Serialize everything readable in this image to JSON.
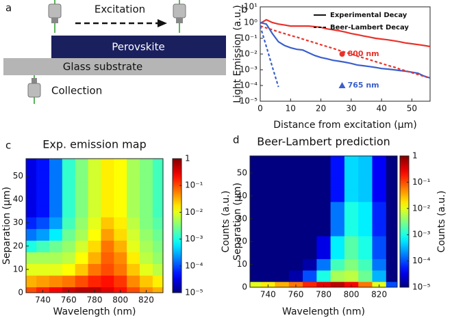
{
  "diagram": {
    "panel": "a",
    "excitation": "Excitation",
    "perovskite": "Perovskite",
    "glass": "Glass substrate",
    "collection": "Collection"
  },
  "chart_data": [
    {
      "type": "line",
      "panel": "b",
      "xlabel": "Distance from excitation (μm)",
      "ylabel": "Light Emission (a.u.)",
      "log_y": true,
      "xlim": [
        0,
        56
      ],
      "ylim": [
        1e-05,
        10
      ],
      "xticks": [
        0,
        10,
        20,
        30,
        40,
        50
      ],
      "yticks": [
        {
          "value": 1e-05,
          "label": "10⁻⁵"
        },
        {
          "value": 0.0001,
          "label": "10⁻⁴"
        },
        {
          "value": 0.001,
          "label": "10⁻³"
        },
        {
          "value": 0.01,
          "label": "10⁻²"
        },
        {
          "value": 0.1,
          "label": "10⁻¹"
        },
        {
          "value": 1,
          "label": "10⁰"
        },
        {
          "value": 10,
          "label": "10¹"
        }
      ],
      "x": [
        0,
        2,
        4,
        6,
        8,
        10,
        12,
        14,
        16,
        18,
        20,
        22,
        24,
        26,
        28,
        30,
        32,
        34,
        36,
        38,
        40,
        42,
        44,
        46,
        48,
        50,
        52,
        54,
        56
      ],
      "series": [
        {
          "color": "#e8322a",
          "dash": "solid",
          "values": [
            0.9,
            1.5,
            1.0,
            0.8,
            0.7,
            0.6,
            0.6,
            0.6,
            0.6,
            0.55,
            0.5,
            0.4,
            0.35,
            0.3,
            0.25,
            0.2,
            0.17,
            0.14,
            0.12,
            0.1,
            0.09,
            0.08,
            0.07,
            0.06,
            0.05,
            0.045,
            0.04,
            0.035,
            0.03
          ]
        },
        {
          "color": "#3a5fcd",
          "dash": "solid",
          "values": [
            1.0,
            0.8,
            0.2,
            0.06,
            0.035,
            0.025,
            0.02,
            0.018,
            0.012,
            0.008,
            0.006,
            0.005,
            0.004,
            0.0035,
            0.003,
            0.0025,
            0.002,
            0.0018,
            0.0016,
            0.0014,
            0.0012,
            0.0011,
            0.001,
            0.0009,
            0.0008,
            0.0007,
            0.0006,
            0.0004,
            0.0003
          ]
        },
        {
          "color": "#e8322a",
          "dash": "dashed",
          "values": [
            0.6,
            0.46,
            0.35,
            0.26,
            0.2,
            0.15,
            0.12,
            0.09,
            0.068,
            0.052,
            0.039,
            0.03,
            0.023,
            0.017,
            0.013,
            0.01,
            0.0075,
            0.0057,
            0.0044,
            0.0033,
            0.0025,
            0.0019,
            0.0015,
            0.0011,
            0.00085,
            0.00065,
            0.0005,
            0.00038,
            0.0003
          ]
        },
        {
          "color": "#3a5fcd",
          "dash": "dashed",
          "values": [
            0.6,
            0.03,
            0.0015,
            8e-05,
            null,
            null,
            null,
            null,
            null,
            null,
            null,
            null,
            null,
            null,
            null,
            null,
            null,
            null,
            null,
            null,
            null,
            null,
            null,
            null,
            null,
            null,
            null,
            null,
            null
          ]
        }
      ],
      "legend": {
        "position": "upper right",
        "entries": [
          {
            "name": "Experimental Decay",
            "dash": "solid"
          },
          {
            "name": "Beer-Lambert Decay",
            "dash": "dashed"
          }
        ]
      },
      "annotations": [
        {
          "text": "800 nm",
          "color": "#e8322a",
          "marker": "circle",
          "x": 27,
          "y": 0.01
        },
        {
          "text": "765 nm",
          "color": "#3a5fcd",
          "marker": "triangle",
          "x": 27,
          "y": 0.0001
        }
      ]
    },
    {
      "type": "heatmap",
      "panel": "c",
      "title": "Exp. emission map",
      "xlabel": "Wavelength (nm)",
      "ylabel": "Separation (μm)",
      "x": [
        730,
        740,
        750,
        760,
        770,
        780,
        790,
        800,
        810,
        820,
        830
      ],
      "y": [
        0,
        5,
        10,
        15,
        20,
        25,
        30,
        35,
        40,
        45,
        50,
        55
      ],
      "xlim": [
        727,
        833
      ],
      "ylim": [
        0,
        57.5
      ],
      "xticks": [
        740,
        760,
        780,
        800,
        820
      ],
      "yticks": [
        0,
        10,
        20,
        30,
        40,
        50
      ],
      "colorbar": {
        "log": true,
        "lim": [
          1e-05,
          1
        ],
        "ticks": [
          {
            "value": 1e-05,
            "label": "10⁻⁵"
          },
          {
            "value": 0.0001,
            "label": "10⁻⁴"
          },
          {
            "value": 0.001,
            "label": "10⁻³"
          },
          {
            "value": 0.01,
            "label": "10⁻²"
          },
          {
            "value": 0.1,
            "label": "10⁻¹"
          },
          1
        ]
      },
      "values": [
        [
          0.1,
          0.16,
          0.25,
          0.4,
          0.5,
          0.5,
          0.32,
          0.2,
          0.1,
          0.05,
          0.032
        ],
        [
          0.032,
          0.04,
          0.05,
          0.063,
          0.1,
          0.16,
          0.2,
          0.13,
          0.05,
          0.025,
          0.016
        ],
        [
          0.01,
          0.01,
          0.01,
          0.013,
          0.025,
          0.063,
          0.1,
          0.063,
          0.025,
          0.01,
          0.0063
        ],
        [
          0.005,
          0.005,
          0.005,
          0.0063,
          0.013,
          0.032,
          0.08,
          0.05,
          0.016,
          0.0063,
          0.004
        ],
        [
          0.001,
          0.0016,
          0.0025,
          0.004,
          0.008,
          0.02,
          0.063,
          0.032,
          0.01,
          0.005,
          0.0032
        ],
        [
          0.00016,
          0.00025,
          0.00063,
          0.0025,
          0.005,
          0.013,
          0.04,
          0.02,
          0.008,
          0.004,
          0.0025
        ],
        [
          6.3e-05,
          0.0001,
          0.00025,
          0.0016,
          0.004,
          0.01,
          0.025,
          0.016,
          0.0063,
          0.0032,
          0.002
        ],
        [
          3.2e-05,
          5e-05,
          0.00016,
          0.0013,
          0.0032,
          0.008,
          0.016,
          0.013,
          0.005,
          0.0032,
          0.0016
        ],
        [
          3.2e-05,
          5e-05,
          0.00016,
          0.0013,
          0.0032,
          0.008,
          0.016,
          0.013,
          0.005,
          0.0032,
          0.0016
        ],
        [
          3.2e-05,
          5e-05,
          0.00016,
          0.0013,
          0.0032,
          0.008,
          0.016,
          0.013,
          0.005,
          0.0032,
          0.0016
        ],
        [
          3.2e-05,
          5e-05,
          0.00016,
          0.0013,
          0.0032,
          0.008,
          0.016,
          0.013,
          0.005,
          0.0032,
          0.0016
        ],
        [
          3.2e-05,
          5e-05,
          0.00016,
          0.0013,
          0.0032,
          0.008,
          0.016,
          0.013,
          0.005,
          0.0032,
          0.0016
        ]
      ]
    },
    {
      "type": "heatmap",
      "panel": "d",
      "title": "Beer-Lambert prediction",
      "xlabel": "Wavelength (nm)",
      "ylabel": "Separation (μm)",
      "ylabel_outer": "Counts (a.u.)",
      "x": [
        730,
        740,
        750,
        760,
        770,
        780,
        790,
        800,
        810,
        820,
        830
      ],
      "y": [
        0,
        5,
        10,
        15,
        20,
        25,
        30,
        35,
        40,
        45,
        50,
        55
      ],
      "xlim": [
        727,
        833
      ],
      "ylim": [
        0,
        57.5
      ],
      "xticks": [
        740,
        760,
        780,
        800,
        820
      ],
      "yticks": [
        0,
        10,
        20,
        30,
        40,
        50
      ],
      "colorbar": {
        "log": true,
        "label": "Counts (a.u.)",
        "lim": [
          1e-05,
          1
        ],
        "ticks": [
          {
            "value": 1e-05,
            "label": "10⁻⁵"
          },
          {
            "value": 0.0001,
            "label": "10⁻⁴"
          },
          {
            "value": 0.001,
            "label": "10⁻³"
          },
          {
            "value": 0.01,
            "label": "10⁻²"
          },
          {
            "value": 0.1,
            "label": "10⁻¹"
          },
          1
        ]
      },
      "values": [
        [
          0.01,
          0.016,
          0.032,
          0.063,
          0.16,
          0.32,
          0.5,
          0.25,
          0.063,
          0.01,
          0.0001
        ],
        [
          1e-05,
          1e-05,
          1e-05,
          1.6e-05,
          0.0001,
          0.001,
          0.005,
          0.0063,
          0.0025,
          0.00032,
          1e-05
        ],
        [
          1e-05,
          1e-05,
          1e-05,
          1e-05,
          1.6e-05,
          0.00016,
          0.0016,
          0.0032,
          0.0016,
          0.00016,
          1e-05
        ],
        [
          1e-05,
          1e-05,
          1e-05,
          1e-05,
          1e-05,
          3.2e-05,
          0.00063,
          0.002,
          0.001,
          0.0001,
          1e-05
        ],
        [
          1e-05,
          1e-05,
          1e-05,
          1e-05,
          1e-05,
          3.2e-05,
          0.00063,
          0.002,
          0.001,
          0.0001,
          1e-05
        ],
        [
          1e-05,
          1e-05,
          1e-05,
          1e-05,
          1e-05,
          1e-05,
          0.00016,
          0.001,
          0.00063,
          6.3e-05,
          1e-05
        ],
        [
          1e-05,
          1e-05,
          1e-05,
          1e-05,
          1e-05,
          1e-05,
          0.00016,
          0.001,
          0.00063,
          6.3e-05,
          1e-05
        ],
        [
          1e-05,
          1e-05,
          1e-05,
          1e-05,
          1e-05,
          1e-05,
          0.00016,
          0.001,
          0.00063,
          6.3e-05,
          1e-05
        ],
        [
          1e-05,
          1e-05,
          1e-05,
          1e-05,
          1e-05,
          1e-05,
          5e-05,
          0.0005,
          0.0004,
          4e-05,
          1e-05
        ],
        [
          1e-05,
          1e-05,
          1e-05,
          1e-05,
          1e-05,
          1e-05,
          5e-05,
          0.0005,
          0.0004,
          4e-05,
          1e-05
        ],
        [
          1e-05,
          1e-05,
          1e-05,
          1e-05,
          1e-05,
          1e-05,
          5e-05,
          0.0005,
          0.0004,
          4e-05,
          1e-05
        ],
        [
          1e-05,
          1e-05,
          1e-05,
          1e-05,
          1e-05,
          1e-05,
          5e-05,
          0.0005,
          0.0004,
          4e-05,
          1e-05
        ]
      ]
    }
  ]
}
